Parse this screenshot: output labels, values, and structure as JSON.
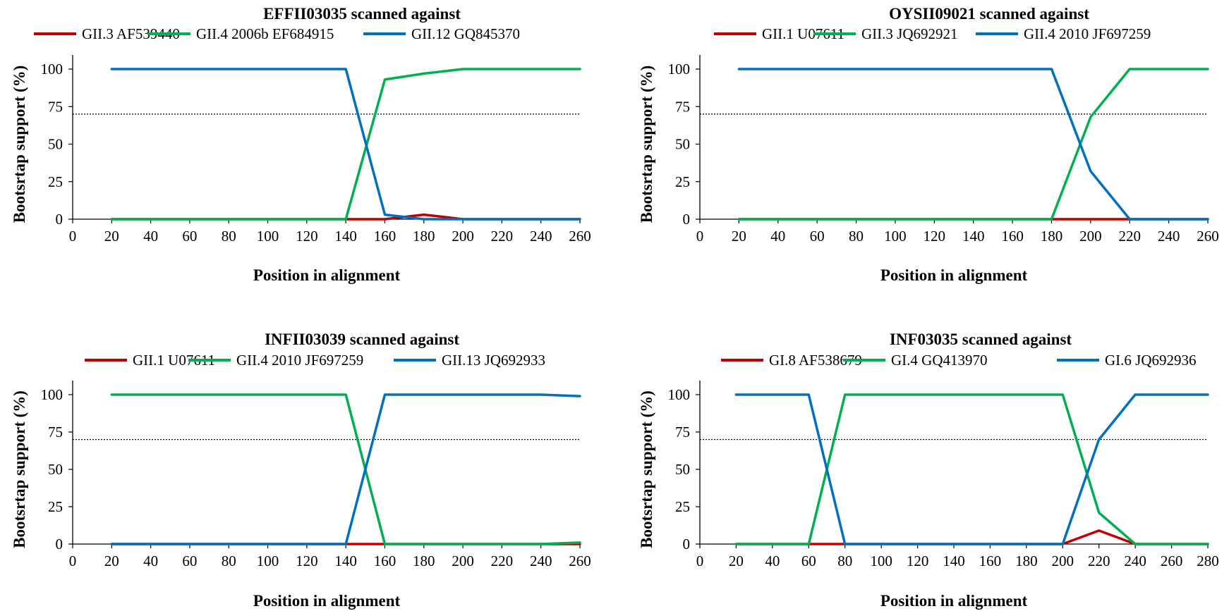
{
  "chart_data": [
    {
      "type": "line",
      "title": "EFFII03035 scanned against",
      "xlabel": "Position in alignment",
      "ylabel": "Bootsrtap support (%)",
      "xlim": [
        0,
        260
      ],
      "ylim": [
        0,
        100
      ],
      "xticks": [
        0,
        20,
        40,
        60,
        80,
        100,
        120,
        140,
        160,
        180,
        200,
        220,
        240,
        260
      ],
      "yticks": [
        0,
        25,
        50,
        75,
        100
      ],
      "threshold": 70,
      "legend_position": "top",
      "x": [
        20,
        40,
        60,
        80,
        100,
        120,
        140,
        160,
        180,
        200,
        220,
        240,
        260
      ],
      "series": [
        {
          "name": "GII.3 AF539440",
          "color": "#c00000",
          "values": [
            0,
            0,
            0,
            0,
            0,
            0,
            0,
            0,
            3,
            0,
            0,
            0,
            0
          ]
        },
        {
          "name": "GII.4 2006b EF684915",
          "color": "#00b050",
          "values": [
            0,
            0,
            0,
            0,
            0,
            0,
            0,
            93,
            97,
            100,
            100,
            100,
            100
          ]
        },
        {
          "name": "GII.12 GQ845370",
          "color": "#0070c0",
          "values": [
            100,
            100,
            100,
            100,
            100,
            100,
            100,
            3,
            0,
            0,
            0,
            0,
            0
          ]
        }
      ]
    },
    {
      "type": "line",
      "title": "OYSII09021 scanned against",
      "xlabel": "Position in alignment",
      "ylabel": "Bootsrtap support (%)",
      "xlim": [
        0,
        260
      ],
      "ylim": [
        0,
        100
      ],
      "xticks": [
        0,
        20,
        40,
        60,
        80,
        100,
        120,
        140,
        160,
        180,
        200,
        220,
        240,
        260
      ],
      "yticks": [
        0,
        25,
        50,
        75,
        100
      ],
      "threshold": 70,
      "legend_position": "top",
      "x": [
        20,
        40,
        60,
        80,
        100,
        120,
        140,
        160,
        180,
        200,
        220,
        240,
        260
      ],
      "series": [
        {
          "name": "GII.1 U07611",
          "color": "#c00000",
          "values": [
            0,
            0,
            0,
            0,
            0,
            0,
            0,
            0,
            0,
            0,
            0,
            0,
            0
          ]
        },
        {
          "name": "GII.3 JQ692921",
          "color": "#00b050",
          "values": [
            0,
            0,
            0,
            0,
            0,
            0,
            0,
            0,
            0,
            68,
            100,
            100,
            100
          ]
        },
        {
          "name": "GII.4 2010 JF697259",
          "color": "#0070c0",
          "values": [
            100,
            100,
            100,
            100,
            100,
            100,
            100,
            100,
            100,
            32,
            0,
            0,
            0
          ]
        }
      ]
    },
    {
      "type": "line",
      "title": "INFII03039 scanned against",
      "xlabel": "Position in alignment",
      "ylabel": "Bootsrtap support (%)",
      "xlim": [
        0,
        260
      ],
      "ylim": [
        0,
        100
      ],
      "xticks": [
        0,
        20,
        40,
        60,
        80,
        100,
        120,
        140,
        160,
        180,
        200,
        220,
        240,
        260
      ],
      "yticks": [
        0,
        25,
        50,
        75,
        100
      ],
      "threshold": 70,
      "legend_position": "top",
      "x": [
        20,
        40,
        60,
        80,
        100,
        120,
        140,
        160,
        180,
        200,
        220,
        240,
        260
      ],
      "series": [
        {
          "name": "GII.1 U07611",
          "color": "#c00000",
          "values": [
            0,
            0,
            0,
            0,
            0,
            0,
            0,
            0,
            0,
            0,
            0,
            0,
            0
          ]
        },
        {
          "name": "GII.4 2010 JF697259",
          "color": "#00b050",
          "values": [
            100,
            100,
            100,
            100,
            100,
            100,
            100,
            0,
            0,
            0,
            0,
            0,
            1
          ]
        },
        {
          "name": "GII.13 JQ692933",
          "color": "#0070c0",
          "values": [
            0,
            0,
            0,
            0,
            0,
            0,
            0,
            100,
            100,
            100,
            100,
            100,
            99
          ]
        }
      ]
    },
    {
      "type": "line",
      "title": "INF03035 scanned against",
      "xlabel": "Position in alignment",
      "ylabel": "Bootsrtap support (%)",
      "xlim": [
        0,
        280
      ],
      "ylim": [
        0,
        100
      ],
      "xticks": [
        0,
        20,
        40,
        60,
        80,
        100,
        120,
        140,
        160,
        180,
        200,
        220,
        240,
        260,
        280
      ],
      "yticks": [
        0,
        25,
        50,
        75,
        100
      ],
      "threshold": 70,
      "legend_position": "top",
      "x": [
        20,
        40,
        60,
        80,
        100,
        120,
        140,
        160,
        180,
        200,
        220,
        240,
        260,
        280
      ],
      "series": [
        {
          "name": "GI.8 AF538679",
          "color": "#c00000",
          "values": [
            0,
            0,
            0,
            0,
            0,
            0,
            0,
            0,
            0,
            0,
            9,
            0,
            0,
            0
          ]
        },
        {
          "name": "GI.4 GQ413970",
          "color": "#00b050",
          "values": [
            0,
            0,
            0,
            100,
            100,
            100,
            100,
            100,
            100,
            100,
            21,
            0,
            0,
            0
          ]
        },
        {
          "name": "GI.6 JQ692936",
          "color": "#0070c0",
          "values": [
            100,
            100,
            100,
            0,
            0,
            0,
            0,
            0,
            0,
            0,
            70,
            100,
            100,
            100
          ]
        }
      ]
    }
  ]
}
